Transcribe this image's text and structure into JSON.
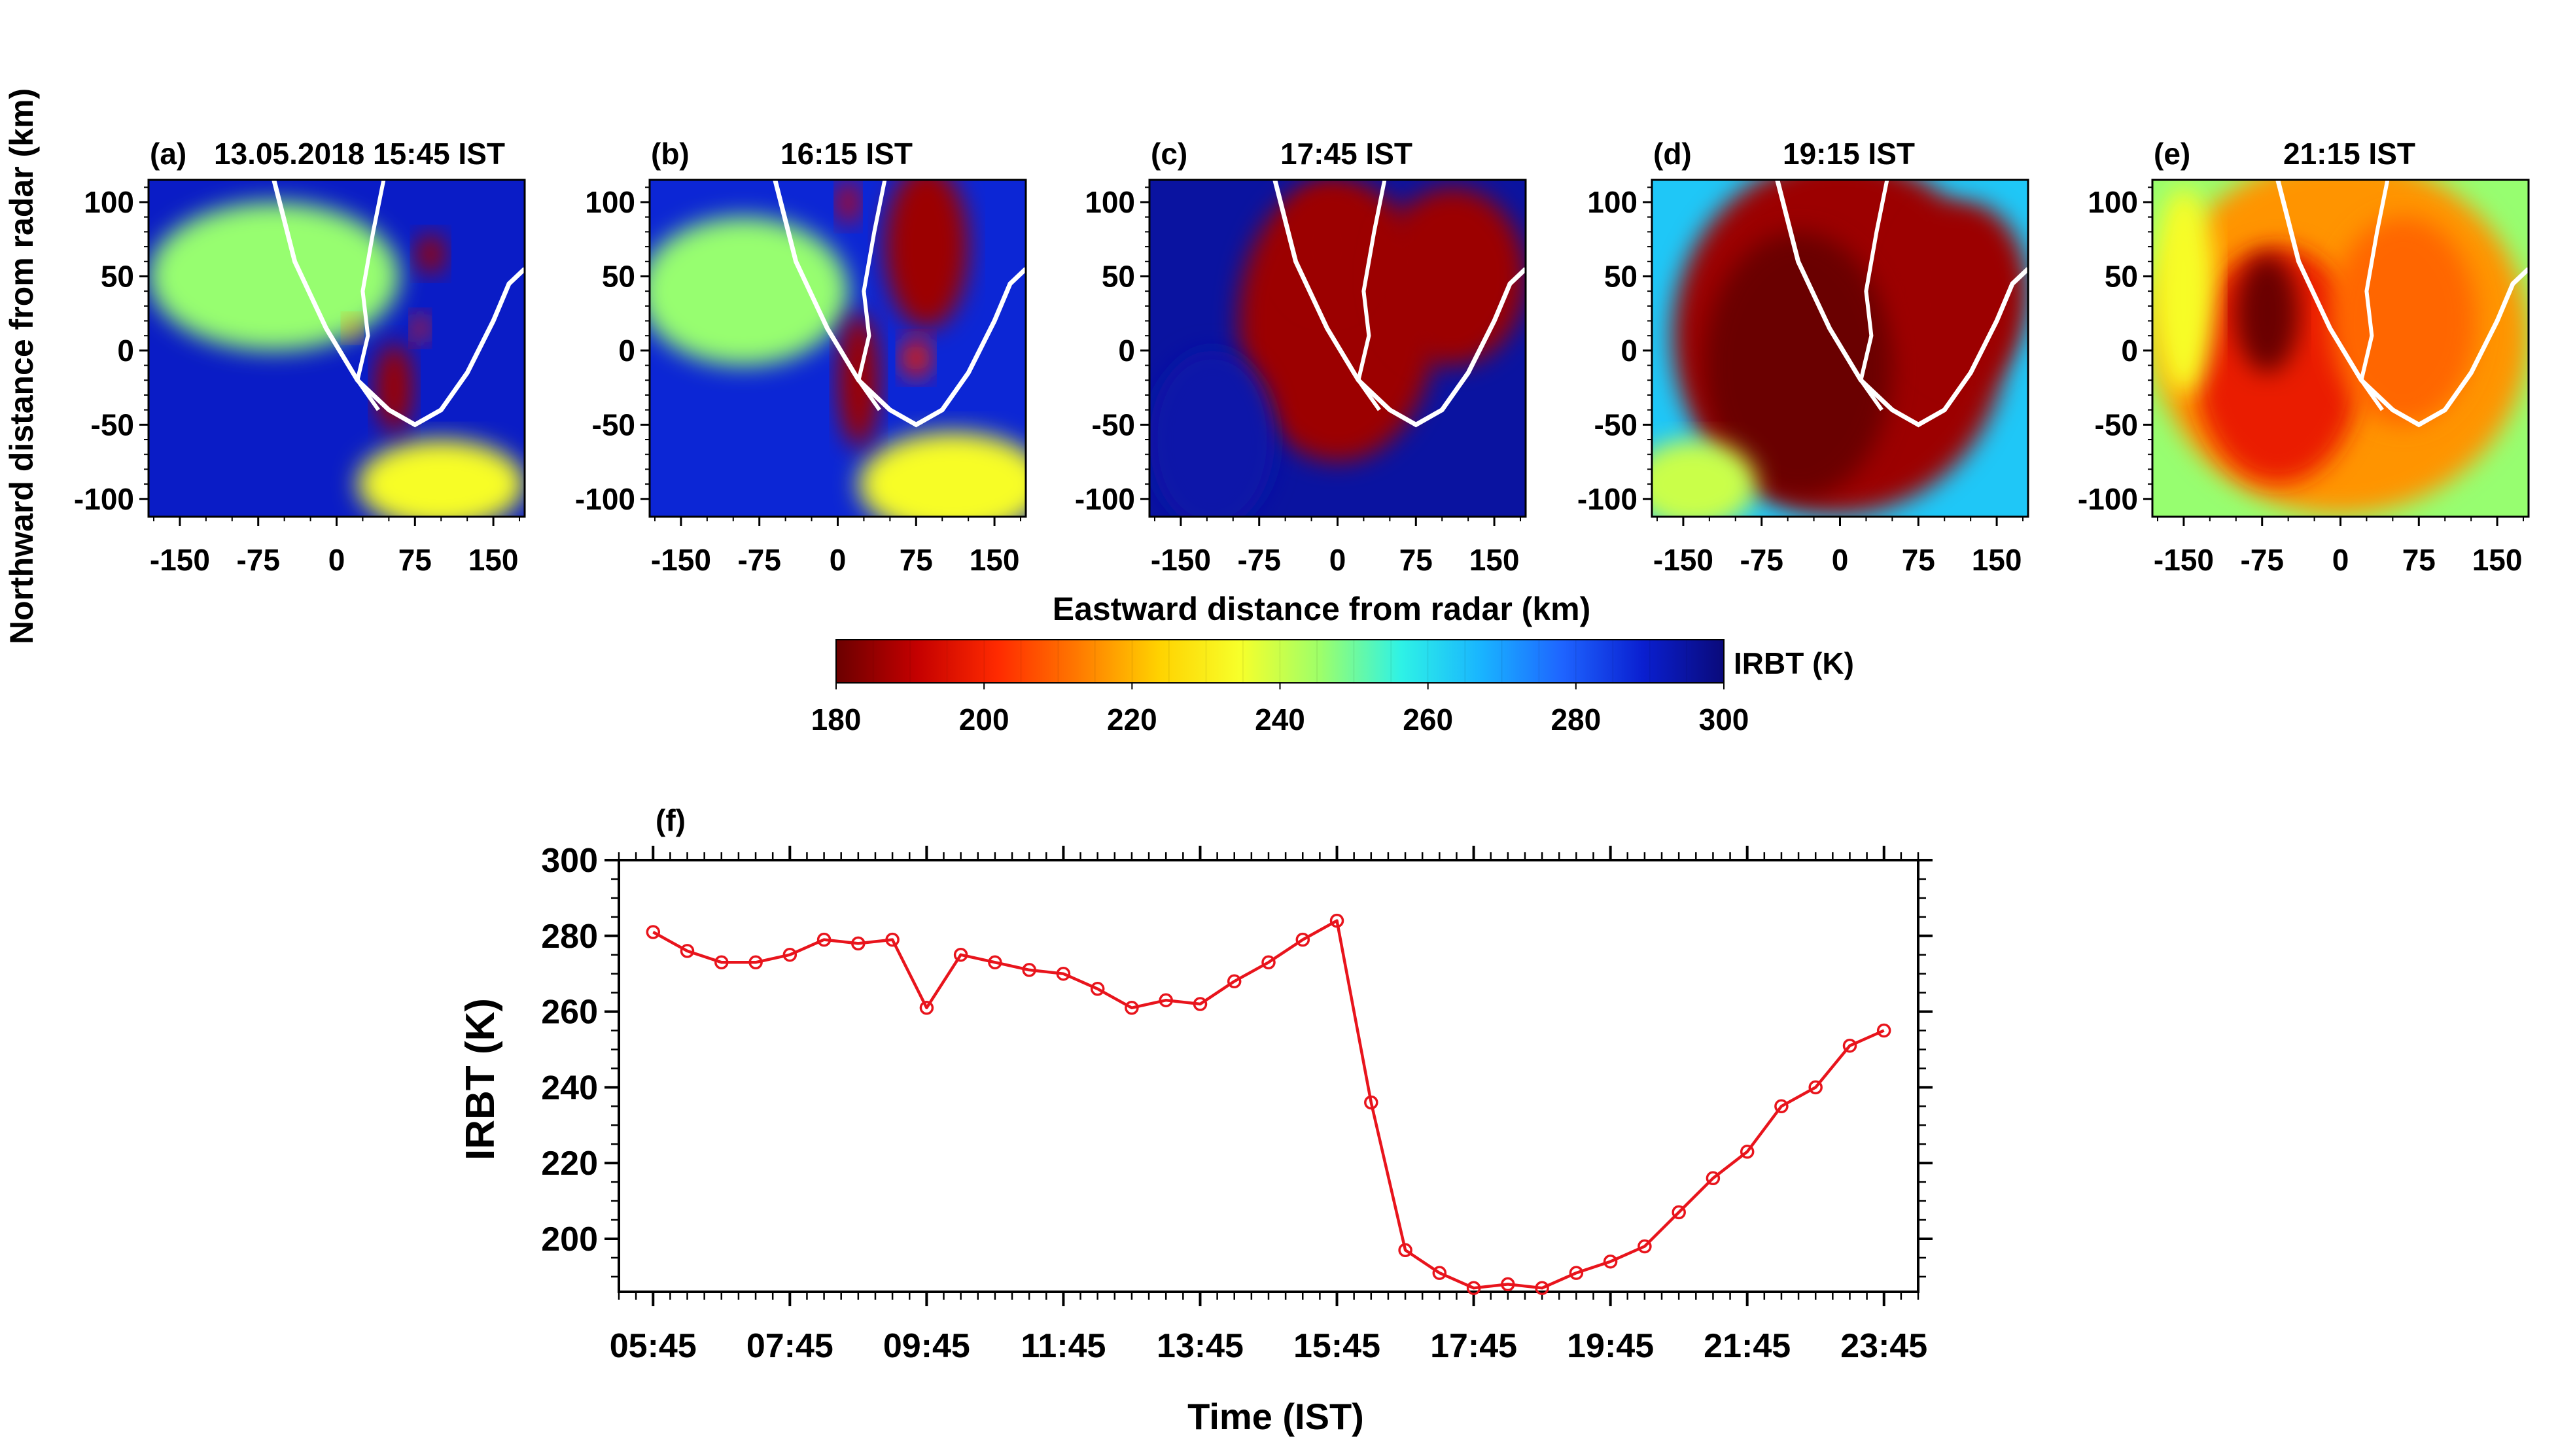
{
  "colors": {
    "line": "#e8141c",
    "axis": "#000000",
    "coast": "#ffffff",
    "colormap": [
      "#6b0000",
      "#c40000",
      "#ff2a00",
      "#ff7a00",
      "#ffd200",
      "#f7ff2a",
      "#9dff6a",
      "#2ef2e6",
      "#19b4ff",
      "#1e64ff",
      "#0a1fd0",
      "#0a0a7a"
    ]
  },
  "maps": {
    "xlabel": "Eastward distance from radar (km)",
    "ylabel": "Northward distance from radar (km)",
    "xticks": [
      -150,
      -75,
      0,
      75,
      150
    ],
    "yticks": [
      100,
      50,
      0,
      -50,
      -100
    ],
    "xlim": [
      -180,
      180
    ],
    "ylim": [
      -112,
      115
    ],
    "panels": [
      {
        "label": "(a)",
        "title": "13.05.2018 15:45 IST",
        "time": "15:45"
      },
      {
        "label": "(b)",
        "title": "16:15 IST",
        "time": "16:15"
      },
      {
        "label": "(c)",
        "title": "17:45 IST",
        "time": "17:45"
      },
      {
        "label": "(d)",
        "title": "19:15 IST",
        "time": "19:15"
      },
      {
        "label": "(e)",
        "title": "21:15 IST",
        "time": "21:15"
      }
    ]
  },
  "colorbar": {
    "label": "IRBT (K)",
    "range": [
      180,
      300
    ],
    "ticks": [
      180,
      200,
      220,
      240,
      260,
      280,
      300
    ]
  },
  "chart_data": {
    "type": "line",
    "panel_label": "(f)",
    "title": "",
    "xlabel": "Time (IST)",
    "ylabel": "IRBT (K)",
    "xtick_labels": [
      "05:45",
      "07:45",
      "09:45",
      "11:45",
      "13:45",
      "15:45",
      "17:45",
      "19:45",
      "21:45",
      "23:45"
    ],
    "xlim_hours": [
      5.25,
      24.25
    ],
    "ylim": [
      186,
      300
    ],
    "yticks": [
      200,
      220,
      240,
      260,
      280,
      300
    ],
    "series": [
      {
        "name": "IRBT",
        "x": [
          "05:45",
          "06:15",
          "06:45",
          "07:15",
          "07:45",
          "08:15",
          "08:45",
          "09:15",
          "09:45",
          "10:15",
          "10:45",
          "11:15",
          "11:45",
          "12:15",
          "12:45",
          "13:15",
          "13:45",
          "14:15",
          "14:45",
          "15:15",
          "15:45",
          "16:15",
          "16:45",
          "17:15",
          "17:45",
          "18:15",
          "18:45",
          "19:15",
          "19:45",
          "20:15",
          "20:45",
          "21:15",
          "21:45",
          "22:15",
          "22:45",
          "23:15",
          "23:45"
        ],
        "values": [
          281,
          276,
          273,
          273,
          275,
          279,
          278,
          279,
          261,
          275,
          273,
          271,
          270,
          266,
          261,
          263,
          262,
          268,
          273,
          279,
          284,
          236,
          197,
          191,
          187,
          188,
          187,
          191,
          194,
          198,
          207,
          216,
          223,
          235,
          240,
          251,
          255
        ]
      }
    ]
  }
}
